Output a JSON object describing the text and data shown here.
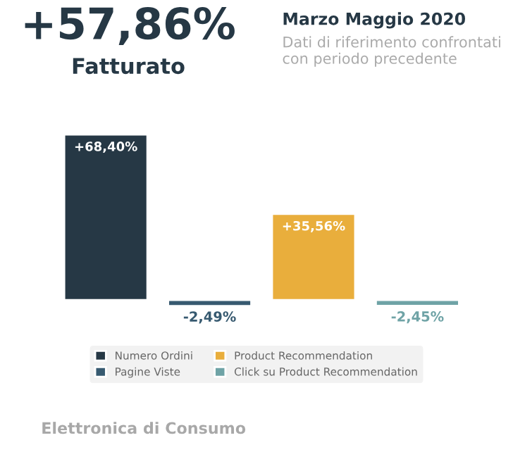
{
  "chart_data": {
    "type": "bar",
    "title": "Marzo Maggio 2020",
    "subtitle": "Dati di riferimento confrontati con periodo precedente",
    "annotations": [
      "+57,86%",
      "Fatturato",
      "Elettronica di Consumo"
    ],
    "categories": [
      null
    ],
    "series": [
      {
        "name": "Numero Ordini",
        "color": "#263845",
        "values": [
          68.4
        ],
        "value_labels": [
          "+68,40%"
        ]
      },
      {
        "name": "Pagine Viste",
        "color": "#375a70",
        "values": [
          -2.49
        ],
        "value_labels": [
          "-2,49%"
        ]
      },
      {
        "name": "Product Recommendation",
        "color": "#e9ae3c",
        "values": [
          35.56
        ],
        "value_labels": [
          "+35,56%"
        ]
      },
      {
        "name": "Click su Product Recommendation",
        "color": "#6fa3a6",
        "values": [
          -2.45
        ],
        "value_labels": [
          "-2,45%"
        ]
      }
    ],
    "legend": "bottom"
  }
}
